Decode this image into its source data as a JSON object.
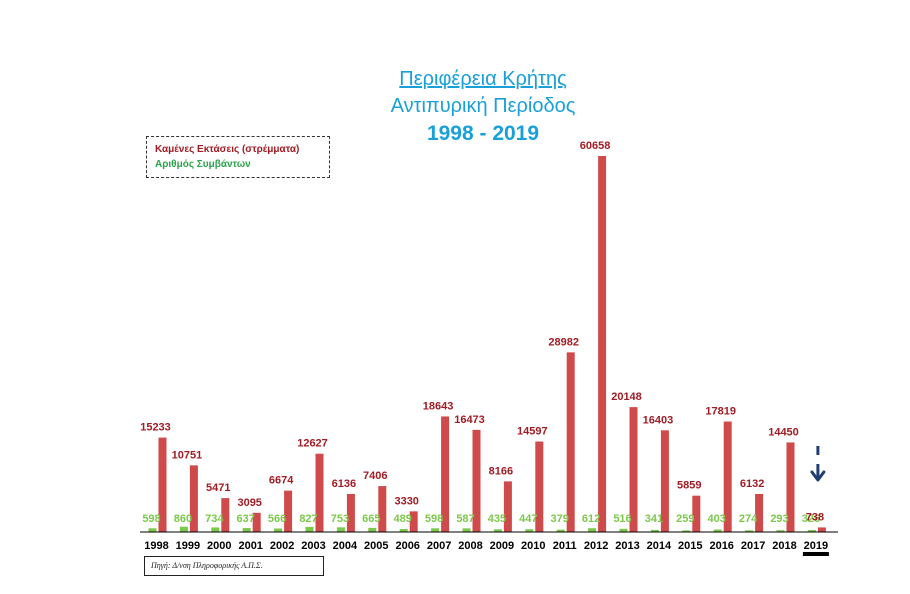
{
  "title": {
    "line1": "Περιφέρεια Κρήτης",
    "line2": "Αντιπυρική Περίοδος",
    "line3": "1998 - 2019"
  },
  "legend": {
    "area": "Καμένες Εκτάσεις  (στρέμματα)",
    "count": "Αριθμός Συμβάντων"
  },
  "source": "Πηγή: Δ/νση Πληροφορικής Α.Π.Σ.",
  "colors": {
    "area": "#cf4a4a",
    "area_label": "#a01c24",
    "count": "#7cc84a",
    "count_label": "#7cc84a",
    "title": "#1aa0d8",
    "arrow": "#1f3f73"
  },
  "chart_data": {
    "type": "bar",
    "categories": [
      "1998",
      "1999",
      "2000",
      "2001",
      "2002",
      "2003",
      "2004",
      "2005",
      "2006",
      "2007",
      "2008",
      "2009",
      "2010",
      "2011",
      "2012",
      "2013",
      "2014",
      "2015",
      "2016",
      "2017",
      "2018",
      "2019"
    ],
    "series": [
      {
        "name": "Αριθμός Συμβάντων",
        "values": [
          598,
          860,
          734,
          637,
          566,
          827,
          753,
          665,
          489,
          598,
          587,
          435,
          447,
          379,
          612,
          516,
          341,
          259,
          403,
          274,
          293,
          326
        ]
      },
      {
        "name": "Καμένες Εκτάσεις  (στρέμματα)",
        "values": [
          15233,
          10751,
          5471,
          3095,
          6674,
          12627,
          6136,
          7406,
          3330,
          18643,
          16473,
          8166,
          14597,
          28982,
          60658,
          20148,
          16403,
          5859,
          17819,
          6132,
          14450,
          738
        ]
      }
    ],
    "ylim": [
      0,
      60658
    ],
    "highlight_category": "2019",
    "annotation": "downward arrow above 2019",
    "grid": false,
    "legend_position": "top-left"
  }
}
